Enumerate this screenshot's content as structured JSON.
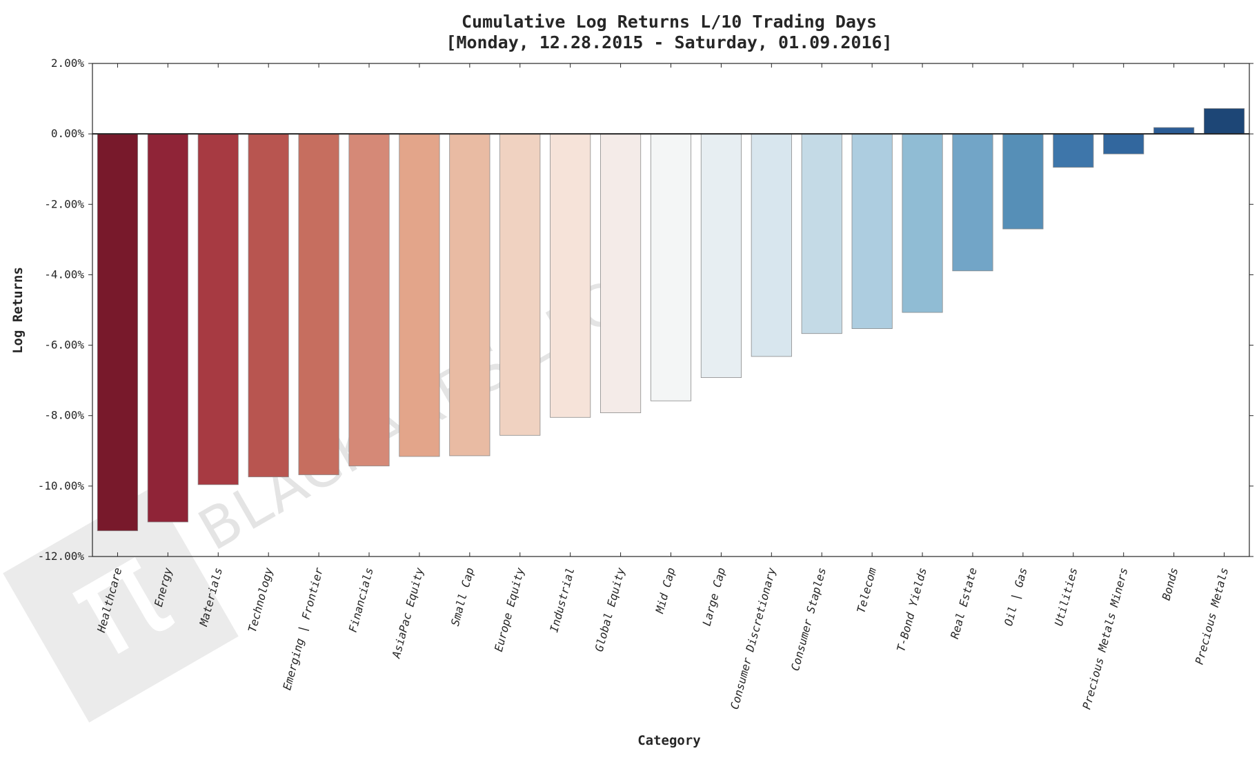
{
  "chart_data": {
    "type": "bar",
    "title": "Cumulative Log Returns L/10 Trading Days",
    "subtitle": "[Monday, 12.28.2015 - Saturday, 01.09.2016]",
    "xlabel": "Category",
    "ylabel": "Log Returns",
    "ylim": [
      -12,
      2
    ],
    "yticks": [
      2,
      0,
      -2,
      -4,
      -6,
      -8,
      -10,
      -12
    ],
    "ytick_labels": [
      "2.00%",
      "0.00%",
      "-2.00%",
      "-4.00%",
      "-6.00%",
      "-8.00%",
      "-10.00%",
      "-12.00%"
    ],
    "categories": [
      "Healthcare",
      "Energy",
      "Materials",
      "Technology",
      "Emerging | Frontier",
      "Financials",
      "AsiaPac Equity",
      "Small Cap",
      "Europe Equity",
      "Industrial",
      "Global Equity",
      "Mid Cap",
      "Large Cap",
      "Consumer Discretionary",
      "Consumer Staples",
      "Telecom",
      "T-Bond Yields",
      "Real Estate",
      "Oil | Gas",
      "Utilities",
      "Precious Metals Miners",
      "Bonds",
      "Precious Metals"
    ],
    "values": [
      -11.27,
      -11.02,
      -9.96,
      -9.74,
      -9.68,
      -9.43,
      -9.16,
      -9.14,
      -8.56,
      -8.05,
      -7.92,
      -7.58,
      -6.92,
      -6.32,
      -5.67,
      -5.53,
      -5.07,
      -3.89,
      -2.7,
      -0.95,
      -0.57,
      0.18,
      0.72
    ],
    "colors": [
      "#78192b",
      "#8f2437",
      "#a73a42",
      "#b85550",
      "#c66e5f",
      "#d58977",
      "#e3a58a",
      "#e9bba3",
      "#f0d2c1",
      "#f6e3d9",
      "#f4ebe8",
      "#f4f6f6",
      "#e7eef2",
      "#d8e6ee",
      "#c4dae6",
      "#adcde0",
      "#90bcd4",
      "#72a5c7",
      "#568fb7",
      "#3e76aa",
      "#32679e",
      "#2b5c95",
      "#1d4676"
    ],
    "grid": false,
    "legend": "none"
  },
  "watermark": {
    "text": "BLACKARBS LLC",
    "logo_glyph": "π"
  }
}
